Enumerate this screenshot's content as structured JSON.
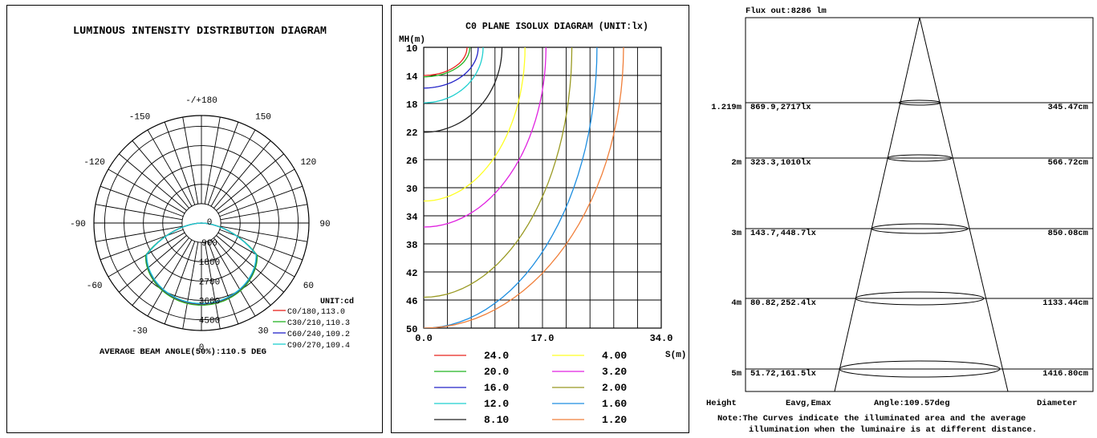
{
  "chart_data": [
    {
      "type": "polar",
      "title": "LUMINOUS INTENSITY DISTRIBUTION DIAGRAM",
      "unit_label": "UNIT:cd",
      "angle_labels": [
        "-/+180",
        "-150",
        "150",
        "-120",
        "120",
        "-90",
        "90",
        "-60",
        "60",
        "-30",
        "30",
        "0"
      ],
      "radial_ticks": [
        "0",
        "900",
        "1800",
        "2700",
        "3600",
        "4500"
      ],
      "radial_max": 4500,
      "series": [
        {
          "name": "C0/180,113.0",
          "color": "#e8231d",
          "beam_angle": 113.0,
          "peak_cd": 3790
        },
        {
          "name": "C30/210,110.3",
          "color": "#22b322",
          "beam_angle": 110.3,
          "peak_cd": 3820
        },
        {
          "name": "C60/240,109.2",
          "color": "#2323c8",
          "beam_angle": 109.2,
          "peak_cd": 3760
        },
        {
          "name": "C90/270,109.4",
          "color": "#1ecfcf",
          "beam_angle": 109.4,
          "peak_cd": 3740
        }
      ],
      "footer": "AVERAGE BEAM ANGLE(50%):110.5 DEG"
    },
    {
      "type": "line",
      "title": "C0 PLANE ISOLUX DIAGRAM (UNIT:lx)",
      "ylabel": "MH(m)",
      "xlabel": "S(m)",
      "y_ticks": [
        "10",
        "14",
        "18",
        "22",
        "26",
        "30",
        "34",
        "38",
        "42",
        "46",
        "50"
      ],
      "x_ticks": [
        "0.0",
        "17.0",
        "34.0"
      ],
      "xlim": [
        0,
        34
      ],
      "ylim": [
        10,
        50
      ],
      "contours": [
        {
          "value": "24.0",
          "color": "#e8231d",
          "tail_y": 14.0,
          "end_x": 6.2
        },
        {
          "value": "20.0",
          "color": "#22b322",
          "tail_y": 14.2,
          "end_x": 6.6
        },
        {
          "value": "16.0",
          "color": "#2323c8",
          "tail_y": 15.8,
          "end_x": 7.8
        },
        {
          "value": "12.0",
          "color": "#1ecfcf",
          "tail_y": 17.9,
          "end_x": 8.5
        },
        {
          "value": "8.10",
          "color": "#222222",
          "tail_y": 22.1,
          "end_x": 11.2
        },
        {
          "value": "4.00",
          "color": "#ffff22",
          "tail_y": 31.9,
          "end_x": 14.5
        },
        {
          "value": "3.20",
          "color": "#e022e0",
          "tail_y": 35.6,
          "end_x": 17.5
        },
        {
          "value": "2.00",
          "color": "#999922",
          "tail_y": 45.6,
          "end_x": 21.2
        },
        {
          "value": "1.60",
          "color": "#1e8ee0",
          "tail_y": 50.0,
          "end_x": 24.8
        },
        {
          "value": "1.20",
          "color": "#f07f3a",
          "tail_y": 50.0,
          "end_x": 28.6
        }
      ]
    },
    {
      "type": "table",
      "title": "Flux out:8286 lm",
      "columns": [
        "Height",
        "Eavg,Emax",
        "Angle:109.57deg",
        "Diameter"
      ],
      "rows": [
        {
          "height": "1.219m",
          "e": "869.9,2717lx",
          "diameter": "345.47cm"
        },
        {
          "height": "2m",
          "e": "323.3,1010lx",
          "diameter": "566.72cm"
        },
        {
          "height": "3m",
          "e": "143.7,448.7lx",
          "diameter": "850.08cm"
        },
        {
          "height": "4m",
          "e": "80.82,252.4lx",
          "diameter": "1133.44cm"
        },
        {
          "height": "5m",
          "e": "51.72,161.5lx",
          "diameter": "1416.80cm"
        }
      ],
      "note_line1": "Note:The Curves indicate the illuminated area and the average",
      "note_line2": "illumination when the luminaire is at different distance."
    }
  ]
}
